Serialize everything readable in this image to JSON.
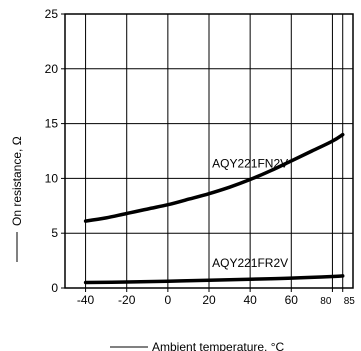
{
  "chart_data": {
    "type": "line",
    "xlabel": "Ambient temperature, °C",
    "ylabel": "On resistance, Ω",
    "xlim": [
      -50,
      90
    ],
    "ylim": [
      0,
      25
    ],
    "x_ticks": [
      -40,
      -20,
      0,
      20,
      40,
      60,
      80,
      85
    ],
    "x_tick_labels": [
      "-40",
      "-20",
      "0",
      "20",
      "40",
      "60",
      "80",
      "85"
    ],
    "y_ticks": [
      0,
      5,
      10,
      15,
      20,
      25
    ],
    "y_tick_labels": [
      "0",
      "5",
      "10",
      "15",
      "20",
      "25"
    ],
    "grid": true,
    "series": [
      {
        "name": "AQY221FN2V",
        "x": [
          -40,
          -30,
          -20,
          -10,
          0,
          10,
          20,
          30,
          40,
          50,
          60,
          70,
          80,
          85
        ],
        "y": [
          6.1,
          6.4,
          6.8,
          7.2,
          7.6,
          8.1,
          8.6,
          9.2,
          9.9,
          10.7,
          11.6,
          12.5,
          13.4,
          14.0
        ]
      },
      {
        "name": "AQY221FR2V",
        "x": [
          -40,
          -20,
          0,
          20,
          40,
          60,
          80,
          85
        ],
        "y": [
          0.5,
          0.55,
          0.62,
          0.7,
          0.8,
          0.9,
          1.05,
          1.1
        ]
      }
    ]
  }
}
